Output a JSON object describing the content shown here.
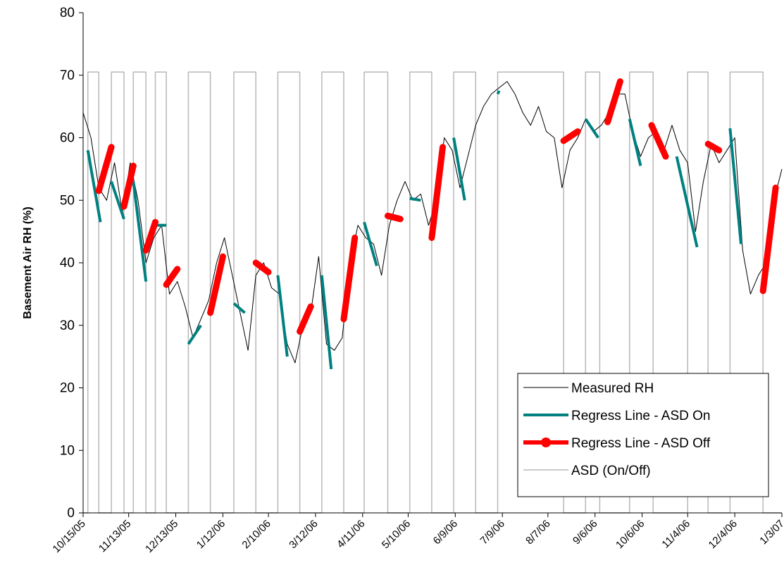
{
  "chart_data": {
    "type": "line",
    "y_label": "Basement Air RH (%)",
    "ylim": [
      0,
      80
    ],
    "yticks": [
      0,
      10,
      20,
      30,
      40,
      50,
      60,
      70,
      80
    ],
    "xlim": [
      0,
      445
    ],
    "xticks": [
      {
        "value": 0,
        "label": "10/15/05"
      },
      {
        "value": 29,
        "label": "11/13/05"
      },
      {
        "value": 59,
        "label": "12/13/05"
      },
      {
        "value": 89,
        "label": "1/12/06"
      },
      {
        "value": 118,
        "label": "2/10/06"
      },
      {
        "value": 148,
        "label": "3/12/06"
      },
      {
        "value": 178,
        "label": "4/11/06"
      },
      {
        "value": 207,
        "label": "5/10/06"
      },
      {
        "value": 237,
        "label": "6/9/06"
      },
      {
        "value": 267,
        "label": "7/9/06"
      },
      {
        "value": 296,
        "label": "8/7/06"
      },
      {
        "value": 326,
        "label": "9/6/06"
      },
      {
        "value": 356,
        "label": "10/6/06"
      },
      {
        "value": 385,
        "label": "11/4/06"
      },
      {
        "value": 415,
        "label": "12/4/06"
      },
      {
        "value": 445,
        "label": "1/3/07"
      }
    ],
    "legend": "lower right",
    "series": [
      {
        "name": "Measured RH",
        "color": "#000000",
        "width": 1,
        "x": [
          0,
          5,
          10,
          15,
          20,
          25,
          30,
          35,
          40,
          45,
          50,
          55,
          60,
          65,
          70,
          75,
          80,
          85,
          90,
          95,
          100,
          105,
          110,
          115,
          120,
          125,
          130,
          135,
          140,
          145,
          150,
          155,
          160,
          165,
          170,
          175,
          180,
          185,
          190,
          195,
          200,
          205,
          210,
          215,
          220,
          225,
          230,
          235,
          240,
          245,
          250,
          255,
          260,
          265,
          270,
          275,
          280,
          285,
          290,
          295,
          300,
          305,
          310,
          315,
          320,
          325,
          330,
          335,
          340,
          345,
          350,
          355,
          360,
          365,
          370,
          375,
          380,
          385,
          390,
          395,
          400,
          405,
          410,
          415,
          420,
          425,
          430,
          435,
          440,
          445
        ],
        "values": [
          64,
          60,
          52,
          50,
          56,
          48,
          56,
          50,
          40,
          44,
          46,
          35,
          37,
          33,
          28,
          31,
          34,
          40,
          44,
          38,
          32,
          26,
          38,
          40,
          36,
          35,
          27,
          24,
          30,
          32,
          41,
          27,
          26,
          28,
          40,
          46,
          44,
          43,
          38,
          46,
          50,
          53,
          50,
          51,
          46,
          50,
          60,
          58,
          52,
          57,
          62,
          65,
          67,
          68,
          69,
          67,
          64,
          62,
          65,
          61,
          60,
          52,
          58,
          60,
          63,
          61,
          62,
          64,
          67,
          67,
          61,
          57,
          60,
          61,
          58,
          62,
          58,
          56,
          45,
          53,
          59,
          56,
          58,
          60,
          42,
          35,
          38,
          40,
          50,
          55
        ]
      },
      {
        "name": "Regress Line - ASD On",
        "color": "#008080",
        "width": 4,
        "x": [
          3,
          11,
          null,
          18,
          26,
          null,
          32,
          40,
          null,
          46,
          53,
          null,
          67,
          75,
          null,
          96,
          103,
          null,
          124,
          130,
          null,
          152,
          158,
          null,
          179,
          187,
          null,
          208,
          215,
          null,
          236,
          243,
          null,
          264,
          265,
          null,
          320,
          328,
          null,
          348,
          355,
          null,
          378,
          391,
          null,
          412,
          419
        ],
        "values": [
          58,
          46.5,
          null,
          53,
          47,
          null,
          53,
          37,
          null,
          46,
          46,
          null,
          27,
          30,
          null,
          33.5,
          32,
          null,
          38,
          25,
          null,
          38,
          23,
          null,
          46.5,
          39.5,
          null,
          50.3,
          50,
          null,
          60,
          50,
          null,
          67,
          67.5,
          null,
          63,
          60,
          null,
          63,
          55.5,
          null,
          57,
          42.5,
          null,
          61.5,
          43
        ]
      },
      {
        "name": "Regress Line - ASD Off",
        "color": "#ff0000",
        "width": 9,
        "x": [
          10,
          18,
          null,
          26,
          32,
          null,
          40,
          46,
          null,
          53,
          60,
          null,
          81,
          89,
          null,
          110,
          118,
          null,
          138,
          145,
          null,
          166,
          173,
          null,
          194,
          202,
          null,
          222,
          229,
          null,
          306,
          315,
          null,
          334,
          342,
          null,
          362,
          371,
          null,
          398,
          405,
          null,
          433,
          441
        ],
        "values": [
          51.5,
          58.5,
          null,
          49,
          55.5,
          null,
          42,
          46.5,
          null,
          36.5,
          39,
          null,
          32,
          41,
          null,
          40,
          38.5,
          null,
          29,
          33,
          null,
          31,
          44,
          null,
          47.5,
          47,
          null,
          44,
          58.5,
          null,
          59.5,
          61,
          null,
          62.5,
          69,
          null,
          62,
          57,
          null,
          59,
          58,
          null,
          35.5,
          52
        ]
      },
      {
        "name": "ASD (On/Off)",
        "color": "#b8b8b8",
        "width": 1.5,
        "x": [
          0,
          3,
          3,
          10,
          10,
          18,
          18,
          26,
          26,
          32,
          32,
          40,
          40,
          46,
          46,
          53,
          53,
          67,
          67,
          81,
          81,
          96,
          96,
          110,
          110,
          124,
          124,
          138,
          138,
          152,
          152,
          166,
          166,
          179,
          179,
          194,
          194,
          208,
          208,
          222,
          222,
          236,
          236,
          250,
          250,
          264,
          264,
          306,
          306,
          320,
          320,
          329,
          329,
          348,
          348,
          363,
          363,
          385,
          385,
          398,
          398,
          412,
          412,
          433,
          433,
          445
        ],
        "values": [
          0,
          0,
          70.5,
          70.5,
          0,
          0,
          70.5,
          70.5,
          0,
          0,
          70.5,
          70.5,
          0,
          0,
          70.5,
          70.5,
          0,
          0,
          70.5,
          70.5,
          0,
          0,
          70.5,
          70.5,
          0,
          0,
          70.5,
          70.5,
          0,
          0,
          70.5,
          70.5,
          0,
          0,
          70.5,
          70.5,
          0,
          0,
          70.5,
          70.5,
          0,
          0,
          70.5,
          70.5,
          0,
          0,
          70.5,
          70.5,
          0,
          0,
          70.5,
          70.5,
          0,
          0,
          70.5,
          70.5,
          0,
          0,
          70.5,
          70.5,
          0,
          0,
          70.5,
          70.5,
          0,
          0
        ]
      }
    ]
  }
}
